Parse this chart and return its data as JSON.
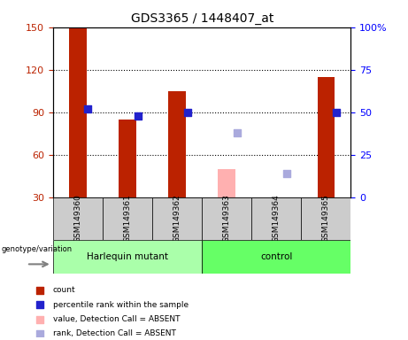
{
  "title": "GDS3365 / 1448407_at",
  "samples": [
    "GSM149360",
    "GSM149361",
    "GSM149362",
    "GSM149363",
    "GSM149364",
    "GSM149365"
  ],
  "count_values": [
    150,
    85,
    105,
    null,
    null,
    115
  ],
  "count_absent": [
    null,
    null,
    null,
    50,
    30,
    null
  ],
  "rank_values": [
    52,
    48,
    50,
    null,
    null,
    50
  ],
  "rank_absent": [
    null,
    null,
    null,
    38,
    14,
    null
  ],
  "ylim_left": [
    30,
    150
  ],
  "ylim_right": [
    0,
    100
  ],
  "yticks_left": [
    30,
    60,
    90,
    120,
    150
  ],
  "yticks_right": [
    0,
    25,
    50,
    75,
    100
  ],
  "ytick_right_labels": [
    "0",
    "25",
    "50",
    "75",
    "100%"
  ],
  "bar_color_red": "#BB2200",
  "bar_color_pink": "#FFB0B0",
  "square_color_blue": "#2222CC",
  "square_color_lightblue": "#AAAADD",
  "group_color_mutant": "#AAFFAA",
  "group_color_control": "#66FF66",
  "sample_box_color": "#CCCCCC",
  "bar_width": 0.35,
  "square_size": 40,
  "legend_colors": [
    "#BB2200",
    "#2222CC",
    "#FFB0B0",
    "#AAAADD"
  ],
  "legend_labels": [
    "count",
    "percentile rank within the sample",
    "value, Detection Call = ABSENT",
    "rank, Detection Call = ABSENT"
  ]
}
